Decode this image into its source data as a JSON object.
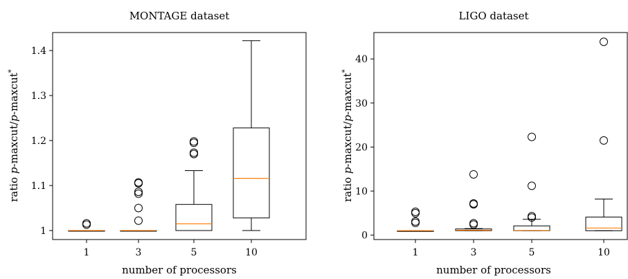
{
  "chart_data": [
    {
      "type": "box",
      "title": "MONTAGE dataset",
      "xlabel": "number of processors",
      "ylabel": {
        "prefix": "ratio ",
        "p1": "p",
        "m1": "-maxcut/",
        "p2": "p",
        "m2": "-maxcut",
        "sup": "*"
      },
      "categories": [
        "1",
        "3",
        "5",
        "10"
      ],
      "ylim": [
        0.98,
        1.44
      ],
      "yticks": [
        1,
        1.1,
        1.2,
        1.3,
        1.4
      ],
      "ytick_labels": [
        "1",
        "1.1",
        "1.2",
        "1.3",
        "1.4"
      ],
      "boxes": [
        {
          "whislo": 1.0,
          "q1": 1.0,
          "med": 1.0,
          "q3": 1.0,
          "whishi": 1.0,
          "fliers": [
            1.013,
            1.016
          ]
        },
        {
          "whislo": 1.0,
          "q1": 1.0,
          "med": 1.0,
          "q3": 1.0,
          "whishi": 1.0,
          "fliers": [
            1.022,
            1.05,
            1.082,
            1.086,
            1.105,
            1.107
          ]
        },
        {
          "whislo": 1.0,
          "q1": 1.0,
          "med": 1.015,
          "q3": 1.058,
          "whishi": 1.133,
          "fliers": [
            1.17,
            1.173,
            1.195,
            1.198
          ]
        },
        {
          "whislo": 1.0,
          "q1": 1.028,
          "med": 1.116,
          "q3": 1.228,
          "whishi": 1.422,
          "fliers": []
        }
      ]
    },
    {
      "type": "box",
      "title": "LIGO dataset",
      "xlabel": "number of processors",
      "ylabel": {
        "prefix": "ratio ",
        "p1": "p",
        "m1": "-maxcut/",
        "p2": "p",
        "m2": "-maxcut",
        "sup": "*"
      },
      "categories": [
        "1",
        "3",
        "5",
        "10"
      ],
      "ylim": [
        -1,
        46
      ],
      "yticks": [
        0,
        10,
        20,
        30,
        40
      ],
      "ytick_labels": [
        "0",
        "10",
        "20",
        "30",
        "40"
      ],
      "boxes": [
        {
          "whislo": 1.0,
          "q1": 1.0,
          "med": 1.0,
          "q3": 1.0,
          "whishi": 1.0,
          "fliers": [
            2.8,
            3.1,
            5.0,
            5.3
          ]
        },
        {
          "whislo": 1.0,
          "q1": 1.0,
          "med": 1.1,
          "q3": 1.4,
          "whishi": 1.5,
          "fliers": [
            2.4,
            2.7,
            7.0,
            7.2,
            13.8
          ]
        },
        {
          "whislo": 1.0,
          "q1": 1.0,
          "med": 1.05,
          "q3": 2.1,
          "whishi": 3.6,
          "fliers": [
            4.0,
            4.3,
            11.2,
            22.3
          ]
        },
        {
          "whislo": 1.0,
          "q1": 1.0,
          "med": 1.6,
          "q3": 4.1,
          "whishi": 8.2,
          "fliers": [
            21.5,
            43.9
          ]
        }
      ]
    }
  ],
  "colors": {
    "median": "#ff7f0e",
    "line": "#000000"
  }
}
